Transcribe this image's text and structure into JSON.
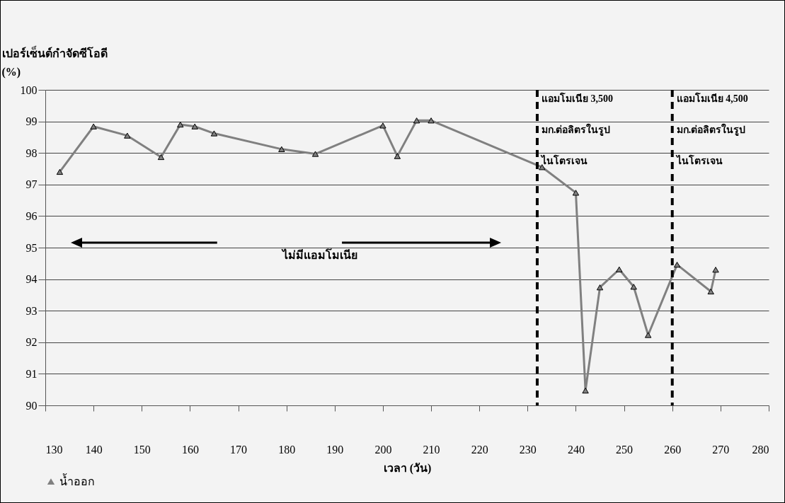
{
  "chart_data": {
    "type": "line",
    "xlabel": "เวลา (วัน)",
    "ylabel": "เปอร์เซ็นต์กำจัดซีโอดี\n(%)",
    "x": [
      133,
      140,
      147,
      154,
      158,
      161,
      165,
      179,
      186,
      200,
      203,
      207,
      210,
      233,
      240,
      242,
      245,
      249,
      252,
      255,
      261,
      268,
      269
    ],
    "series": [
      {
        "name": "น้ำออก",
        "color": "#808080",
        "values": [
          97.4,
          98.84,
          98.55,
          97.87,
          98.9,
          98.84,
          98.62,
          98.12,
          97.97,
          98.87,
          97.9,
          99.03,
          99.03,
          97.55,
          96.74,
          90.47,
          93.74,
          94.31,
          93.76,
          92.23,
          94.46,
          93.61,
          94.3
        ]
      }
    ],
    "xlim": [
      130,
      280
    ],
    "xticks": [
      130,
      140,
      150,
      160,
      170,
      180,
      190,
      200,
      210,
      220,
      230,
      240,
      250,
      260,
      270,
      280
    ],
    "ylim": [
      90,
      100
    ],
    "yticks": [
      90,
      91,
      92,
      93,
      94,
      95,
      96,
      97,
      98,
      99,
      100
    ],
    "grid": "y",
    "legend": "bottom",
    "marker": "triangle",
    "line_style": "solid",
    "ref_lines": [
      {
        "axis": "x",
        "value": 232,
        "label": "แอมโมเนีย 3,500\nมก.ต่อลิตรในรูป\nไนโตรเจน",
        "color": "#000000",
        "line_style": "dashed"
      },
      {
        "axis": "x",
        "value": 260,
        "label": "แอมโมเนีย 4,500\nมก.ต่อลิตรในรูป\nไนโตรเจน",
        "color": "#000000",
        "line_style": "dashed"
      }
    ],
    "annotations": [
      "ไม่มีแอมโมเนีย"
    ]
  }
}
